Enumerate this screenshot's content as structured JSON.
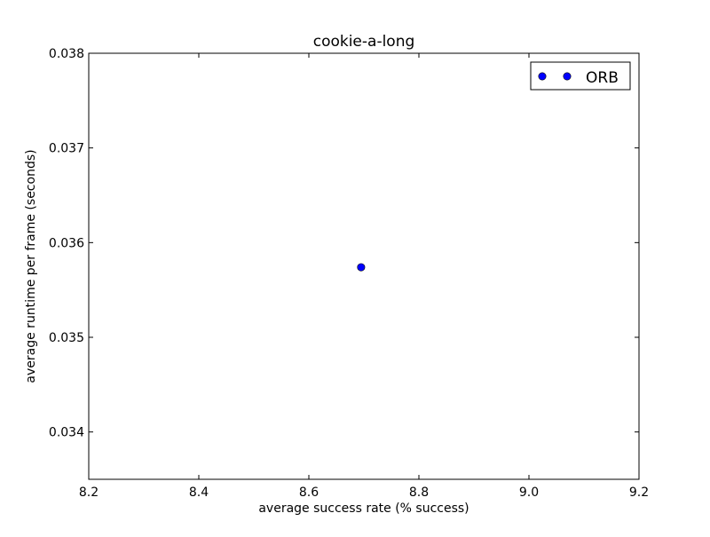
{
  "chart_data": {
    "type": "scatter",
    "title": "cookie-a-long",
    "xlabel": "average success rate (% success)",
    "ylabel": "average runtime per frame (seconds)",
    "xlim": [
      8.2,
      9.2
    ],
    "ylim": [
      0.0335,
      0.038
    ],
    "xticks": [
      "8.2",
      "8.4",
      "8.6",
      "8.8",
      "9.0",
      "9.2"
    ],
    "yticks": [
      "0.034",
      "0.035",
      "0.036",
      "0.037",
      "0.038"
    ],
    "grid": false,
    "legend_position": "top-right",
    "series": [
      {
        "name": "ORB",
        "color": "#0000ff",
        "marker": "circle",
        "points": [
          {
            "x": 8.695,
            "y": 0.03574
          }
        ]
      }
    ]
  }
}
